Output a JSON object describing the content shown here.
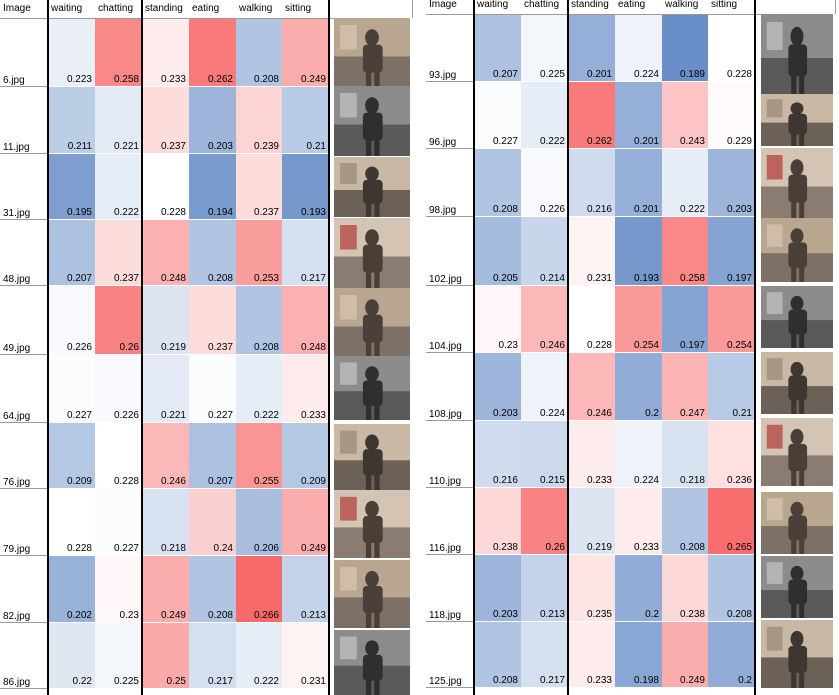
{
  "chart_data": [
    {
      "type": "heatmap",
      "header_first": "Image",
      "columns": [
        "waiting",
        "chatting",
        "standing",
        "eating",
        "walking",
        "sitting"
      ],
      "rows": [
        {
          "label": "6.jpg",
          "values": [
            0.223,
            0.258,
            0.233,
            0.262,
            0.208,
            0.249
          ]
        },
        {
          "label": "11.jpg",
          "values": [
            0.211,
            0.221,
            0.237,
            0.203,
            0.239,
            0.21
          ]
        },
        {
          "label": "31.jpg",
          "values": [
            0.195,
            0.222,
            0.228,
            0.194,
            0.237,
            0.193
          ]
        },
        {
          "label": "48.jpg",
          "values": [
            0.207,
            0.237,
            0.248,
            0.208,
            0.253,
            0.217
          ]
        },
        {
          "label": "49.jpg",
          "values": [
            0.226,
            0.26,
            0.219,
            0.237,
            0.208,
            0.248
          ]
        },
        {
          "label": "64.jpg",
          "values": [
            0.227,
            0.226,
            0.221,
            0.227,
            0.222,
            0.233
          ]
        },
        {
          "label": "76.jpg",
          "values": [
            0.209,
            0.228,
            0.246,
            0.207,
            0.255,
            0.209
          ]
        },
        {
          "label": "79.jpg",
          "values": [
            0.228,
            0.227,
            0.218,
            0.24,
            0.206,
            0.249
          ]
        },
        {
          "label": "82.jpg",
          "values": [
            0.202,
            0.23,
            0.249,
            0.208,
            0.266,
            0.213
          ]
        },
        {
          "label": "86.jpg",
          "values": [
            0.22,
            0.225,
            0.25,
            0.217,
            0.222,
            0.231
          ]
        }
      ]
    },
    {
      "type": "heatmap",
      "header_first": "Image",
      "columns": [
        "waiting",
        "chatting",
        "standing",
        "eating",
        "walking",
        "sitting"
      ],
      "rows": [
        {
          "label": "93.jpg",
          "values": [
            0.207,
            0.225,
            0.201,
            0.224,
            0.189,
            0.228
          ]
        },
        {
          "label": "96.jpg",
          "values": [
            0.227,
            0.222,
            0.262,
            0.201,
            0.243,
            0.229
          ]
        },
        {
          "label": "98.jpg",
          "values": [
            0.208,
            0.226,
            0.216,
            0.201,
            0.222,
            0.203
          ]
        },
        {
          "label": "102.jpg",
          "values": [
            0.205,
            0.214,
            0.231,
            0.193,
            0.258,
            0.197
          ]
        },
        {
          "label": "104.jpg",
          "values": [
            0.23,
            0.246,
            0.228,
            0.254,
            0.197,
            0.254
          ]
        },
        {
          "label": "108.jpg",
          "values": [
            0.203,
            0.224,
            0.246,
            0.2,
            0.247,
            0.21
          ]
        },
        {
          "label": "110.jpg",
          "values": [
            0.216,
            0.215,
            0.233,
            0.224,
            0.218,
            0.236
          ]
        },
        {
          "label": "116.jpg",
          "values": [
            0.238,
            0.26,
            0.219,
            0.233,
            0.208,
            0.265
          ]
        },
        {
          "label": "118.jpg",
          "values": [
            0.203,
            0.213,
            0.235,
            0.2,
            0.238,
            0.208
          ]
        },
        {
          "label": "125.jpg",
          "values": [
            0.208,
            0.217,
            0.233,
            0.198,
            0.249,
            0.2
          ]
        }
      ]
    }
  ],
  "colors": {
    "low": "#6a8fc8",
    "mid": "#ffffff",
    "high": "#f86a6a"
  }
}
